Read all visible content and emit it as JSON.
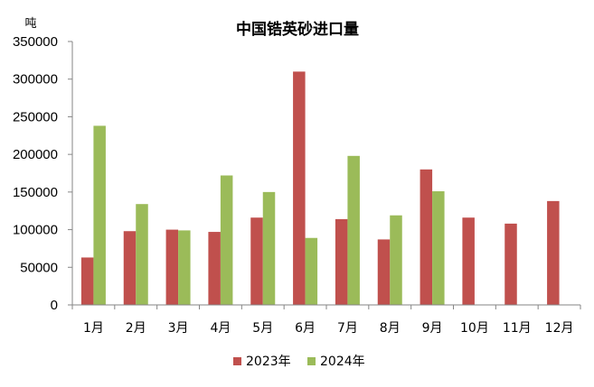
{
  "chart_data": {
    "type": "bar",
    "title": "中国锆英砂进口量",
    "ylabel": "吨",
    "xlabel": "",
    "categories": [
      "1月",
      "2月",
      "3月",
      "4月",
      "5月",
      "6月",
      "7月",
      "8月",
      "9月",
      "10月",
      "11月",
      "12月"
    ],
    "series": [
      {
        "name": "2023年",
        "color": "#C0504D",
        "values": [
          63000,
          98000,
          100000,
          97000,
          116000,
          310000,
          114000,
          87000,
          180000,
          116000,
          108000,
          138000
        ]
      },
      {
        "name": "2024年",
        "color": "#9BBB59",
        "values": [
          238000,
          134000,
          99000,
          172000,
          150000,
          89000,
          198000,
          119000,
          151000,
          null,
          null,
          null
        ]
      }
    ],
    "ylim": [
      0,
      350000
    ],
    "yticks": [
      "0",
      "50000",
      "100000",
      "150000",
      "200000",
      "250000",
      "300000",
      "350000"
    ],
    "ytick_values": [
      0,
      50000,
      100000,
      150000,
      200000,
      250000,
      300000,
      350000
    ],
    "grid": false,
    "legend_position": "bottom"
  }
}
